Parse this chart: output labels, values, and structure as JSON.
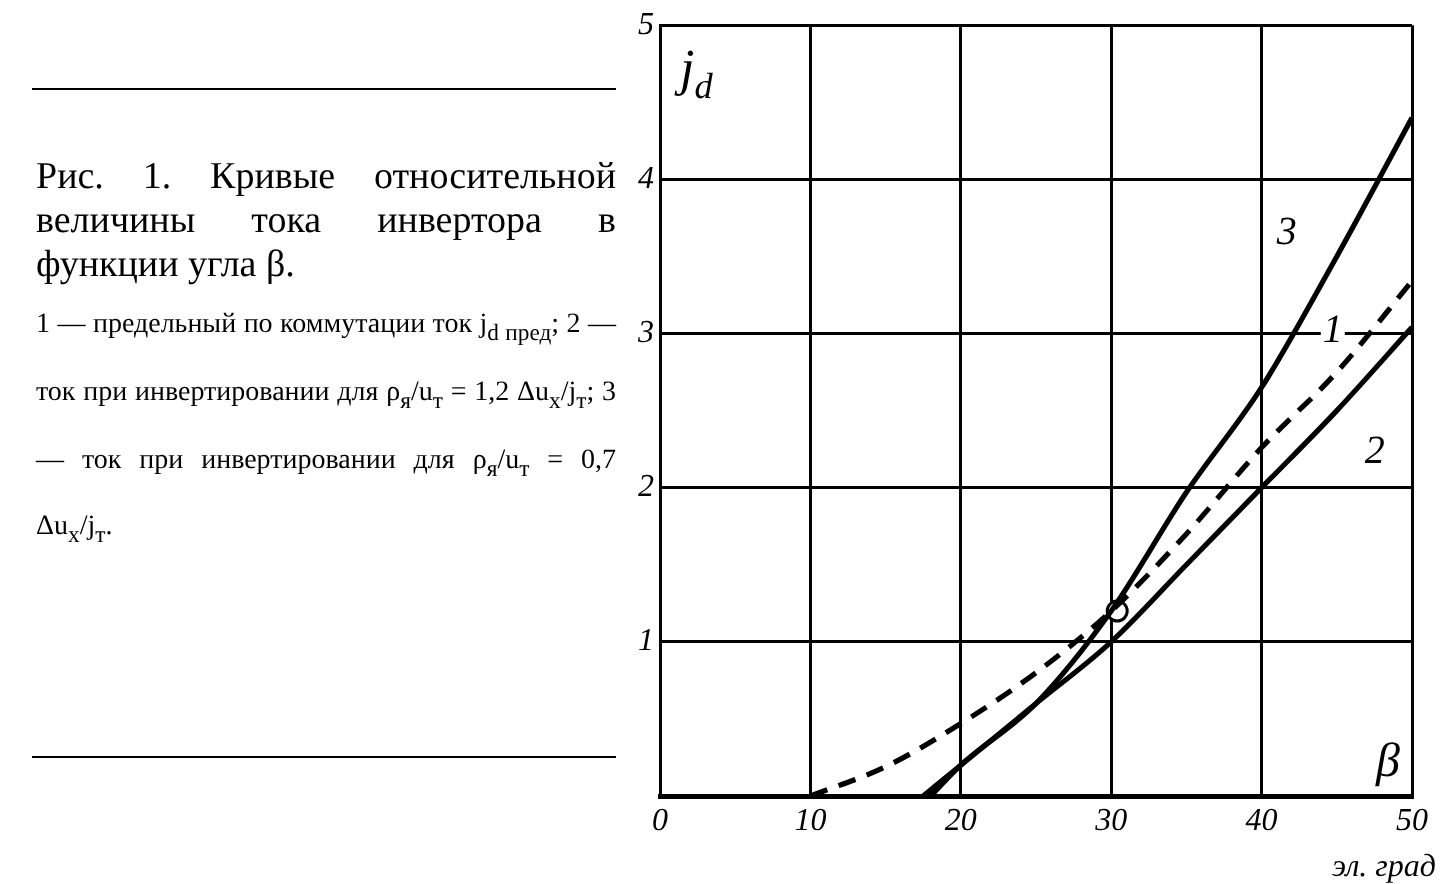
{
  "chart_data": {
    "type": "line",
    "title": "Рис. 1. Кривые относительной величины тока инвертора в функции угла β.",
    "subtitle": "1 — предельный по коммутации ток j$_{d пред}$; 2 — ток при инвертировании для ρ$_{я}$/u$_{т}$ = 1,2 Δu$_{x}$/j$_{т}$; 3 — ток при инвертировании для ρ$_{я}$/u$_{т}$ = 0,7 Δu$_{x}$/j$_{т}$.",
    "xlabel": "эл. град",
    "ylabel": "j$_{d}$",
    "annotations": [
      "β"
    ],
    "xlim": [
      0,
      50
    ],
    "ylim": [
      0,
      5
    ],
    "xticks": [
      0,
      10,
      20,
      30,
      40,
      50
    ],
    "yticks": [
      {
        "value": 0,
        "label": null
      },
      1,
      2,
      3,
      4,
      5
    ],
    "grid": true,
    "marker": "none",
    "series": [
      {
        "name": "1",
        "color": "#000000",
        "line_style": "dashed",
        "x": [
          10,
          15,
          20,
          25,
          30,
          35,
          40,
          45,
          50
        ],
        "values": [
          0,
          0.19,
          0.47,
          0.8,
          1.2,
          1.7,
          2.26,
          2.75,
          3.34
        ]
      },
      {
        "name": "2",
        "color": "#000000",
        "line_style": "solid",
        "x": [
          17.5,
          20,
          25,
          30,
          35,
          40,
          45,
          50
        ],
        "values": [
          0,
          0.2,
          0.6,
          1.0,
          1.5,
          2.0,
          2.5,
          3.04
        ]
      },
      {
        "name": "3",
        "color": "#000000",
        "line_style": "solid",
        "x": [
          18,
          20,
          25,
          30,
          35,
          40,
          45,
          50
        ],
        "values": [
          0,
          0.2,
          0.6,
          1.2,
          1.97,
          2.65,
          3.5,
          4.4
        ]
      },
      {
        "type": "scatter",
        "color": "#000000",
        "marker": "circle",
        "x": [
          30.4
        ],
        "values": [
          1.2
        ]
      }
    ]
  }
}
